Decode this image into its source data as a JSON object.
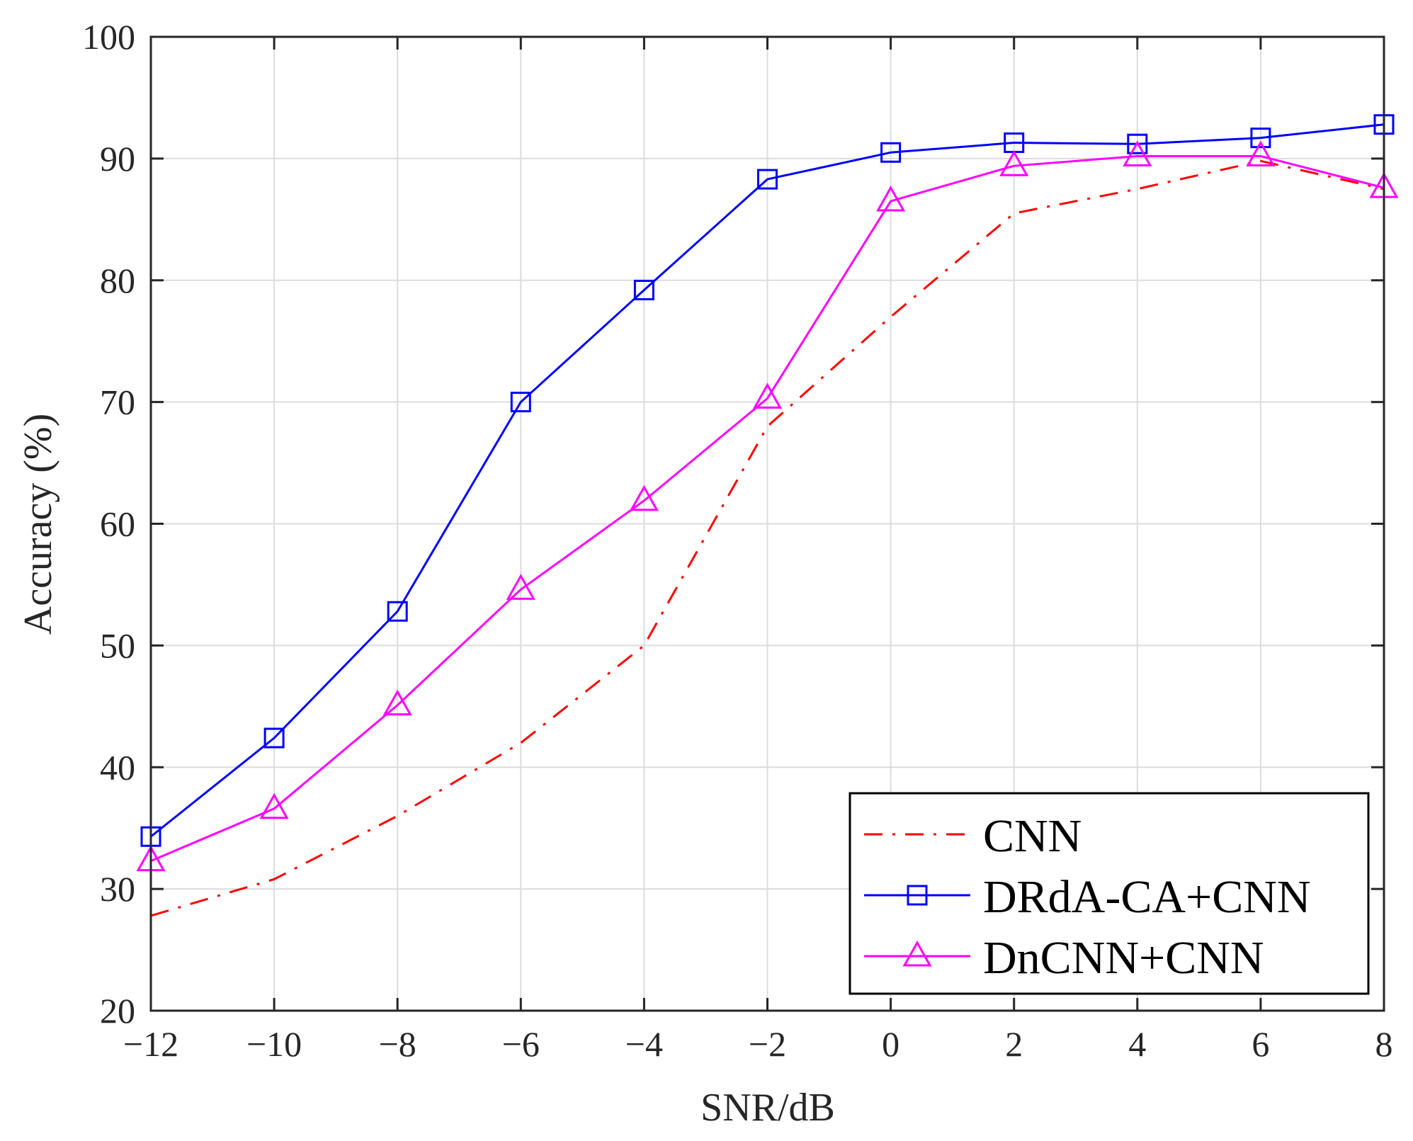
{
  "chart_data": {
    "type": "line",
    "title": "",
    "xlabel": "SNR/dB",
    "ylabel": "Accuracy (%)",
    "xlim": [
      -12,
      8
    ],
    "ylim": [
      20,
      100
    ],
    "grid": true,
    "x": [
      -12,
      -10,
      -8,
      -6,
      -4,
      -2,
      0,
      2,
      4,
      6,
      8
    ],
    "x_tick_labels": [
      "−12",
      "−10",
      "−8",
      "−6",
      "−4",
      "−2",
      "0",
      "2",
      "4",
      "6",
      "8"
    ],
    "y_ticks": [
      20,
      30,
      40,
      50,
      60,
      70,
      80,
      90,
      100
    ],
    "y_tick_labels": [
      "20",
      "30",
      "40",
      "50",
      "60",
      "70",
      "80",
      "90",
      "100"
    ],
    "legend_position": "bottom-right",
    "series": [
      {
        "name": "CNN",
        "color": "#ff0000",
        "line_style": "dash-dot",
        "marker": "none",
        "values": [
          27.8,
          30.8,
          36,
          42,
          50,
          68,
          77,
          85.5,
          87.5,
          89.8,
          87.5
        ]
      },
      {
        "name": "DRdA-CA+CNN",
        "color": "#0000ff",
        "line_style": "solid",
        "marker": "square",
        "values": [
          34.3,
          42.4,
          52.8,
          70,
          79.2,
          88.3,
          90.5,
          91.3,
          91.2,
          91.7,
          92.8
        ]
      },
      {
        "name": "DnCNN+CNN",
        "color": "#ff00ff",
        "line_style": "solid",
        "marker": "triangle",
        "values": [
          32.3,
          36.6,
          45.1,
          54.6,
          61.9,
          70.3,
          86.5,
          89.4,
          90.2,
          90.2,
          87.6
        ]
      }
    ]
  }
}
